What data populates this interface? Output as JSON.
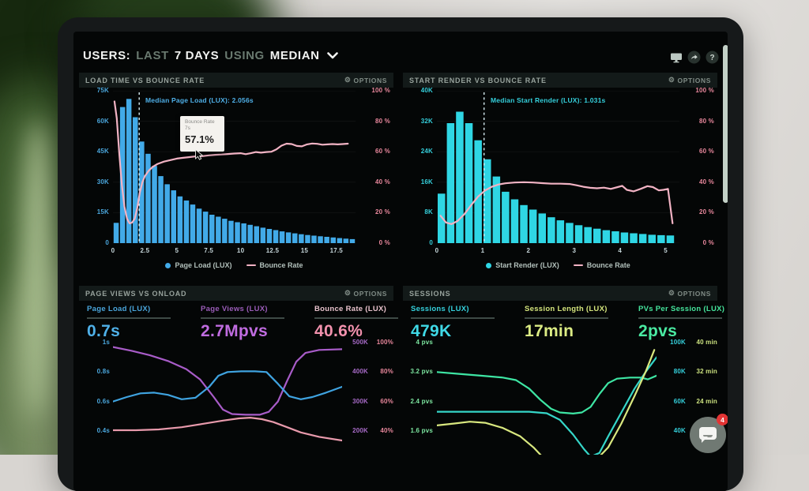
{
  "labels": {
    "options": "OPTIONS"
  },
  "header": {
    "title_prefix": "USERS:",
    "range_muted": "LAST",
    "range": "7 DAYS",
    "using_muted": "USING",
    "aggregation": "MEDIAN",
    "icons": [
      "display-icon",
      "share-icon",
      "help-icon"
    ]
  },
  "chat": {
    "unread_count": "4"
  },
  "theme": {
    "blue": "#42aae8",
    "cyan": "#2fd6e4",
    "pink_line": "#f2b3c4",
    "pink_text": "#e8879c",
    "purple": "#a86bc8",
    "green": "#45e49c",
    "teal": "#35d6c8",
    "yellow_green": "#d9e87f",
    "panel_title": "#97a29c",
    "background": "#040606"
  },
  "chart_data": [
    {
      "id": "load-time-vs-bounce-rate",
      "type": "bar",
      "title": "LOAD TIME VS BOUNCE RATE",
      "xlim": 19,
      "x_ticks": [
        0,
        2.5,
        5,
        7.5,
        10,
        12.5,
        15,
        17.5
      ],
      "left_axis": {
        "ticks": [
          "75K",
          "60K",
          "45K",
          "30K",
          "15K",
          "0"
        ],
        "max_k": 75,
        "color": "#4aa6dc"
      },
      "right_axis": {
        "ticks": [
          "100 %",
          "80 %",
          "60 %",
          "40 %",
          "20 %",
          "0 %"
        ],
        "max": 100,
        "color": "#e8879c"
      },
      "bars": {
        "name": "Page Load (LUX)",
        "color": "#42aae8",
        "start": 0.25,
        "step": 0.5,
        "values_k": [
          10,
          67,
          71,
          62,
          50,
          44,
          38,
          33,
          29,
          26,
          23,
          21,
          19,
          17,
          15.5,
          14,
          13,
          12,
          11,
          10.3,
          9.7,
          9,
          8.3,
          7.6,
          7,
          6.4,
          5.8,
          5.3,
          4.8,
          4.4,
          4,
          3.7,
          3.4,
          3.1,
          2.8,
          2.5,
          2.2,
          2
        ]
      },
      "line": {
        "name": "Bounce Rate",
        "color": "#f2b3c4",
        "points": [
          [
            0.12,
            93
          ],
          [
            0.3,
            82
          ],
          [
            0.5,
            58
          ],
          [
            0.7,
            38
          ],
          [
            0.9,
            24
          ],
          [
            1.1,
            16
          ],
          [
            1.3,
            13
          ],
          [
            1.5,
            13.5
          ],
          [
            1.7,
            16
          ],
          [
            1.9,
            23
          ],
          [
            2.1,
            33
          ],
          [
            2.3,
            40
          ],
          [
            2.5,
            44
          ],
          [
            2.8,
            47.5
          ],
          [
            3.1,
            50
          ],
          [
            3.5,
            52
          ],
          [
            4,
            53.5
          ],
          [
            4.5,
            54.5
          ],
          [
            5,
            55.5
          ],
          [
            5.5,
            56
          ],
          [
            6,
            56.5
          ],
          [
            6.5,
            57
          ],
          [
            7,
            57.1
          ],
          [
            7.5,
            57.6
          ],
          [
            8,
            58
          ],
          [
            8.5,
            58.2
          ],
          [
            9,
            58.5
          ],
          [
            9.5,
            58.8
          ],
          [
            10,
            59
          ],
          [
            10.4,
            58.4
          ],
          [
            10.8,
            59
          ],
          [
            11.2,
            59.8
          ],
          [
            11.6,
            59.4
          ],
          [
            12,
            59.8
          ],
          [
            12.4,
            60
          ],
          [
            12.8,
            61.5
          ],
          [
            13.2,
            64
          ],
          [
            13.6,
            65.3
          ],
          [
            14,
            65
          ],
          [
            14.4,
            63.8
          ],
          [
            14.8,
            63.5
          ],
          [
            15.2,
            64.8
          ],
          [
            15.6,
            65.4
          ],
          [
            16,
            65.2
          ],
          [
            16.4,
            64.6
          ],
          [
            16.8,
            64.8
          ],
          [
            17.2,
            65
          ],
          [
            17.6,
            64.8
          ],
          [
            18,
            65
          ],
          [
            18.4,
            65.3
          ]
        ]
      },
      "median": {
        "x": 2.056,
        "label": "Median Page Load (LUX): 2.056s",
        "color": "#4fb0e8"
      },
      "tooltip": {
        "series": "Bounce Rate",
        "x": "7s",
        "value": "57.1%"
      },
      "legend": [
        {
          "label": "Page Load (LUX)",
          "color": "#42aae8",
          "marker": "dot"
        },
        {
          "label": "Bounce Rate",
          "color": "#f2b3c4",
          "marker": "line"
        }
      ]
    },
    {
      "id": "start-render-vs-bounce-rate",
      "type": "bar",
      "title": "START RENDER VS BOUNCE RATE",
      "xlim": 5.3,
      "x_ticks": [
        0,
        1,
        2,
        3,
        4,
        5
      ],
      "left_axis": {
        "ticks": [
          "40K",
          "32K",
          "24K",
          "16K",
          "8K",
          "0"
        ],
        "max_k": 40,
        "color": "#35d0dc"
      },
      "right_axis": {
        "ticks": [
          "100 %",
          "80 %",
          "60 %",
          "40 %",
          "20 %",
          "0 %"
        ],
        "max": 100,
        "color": "#e8879c"
      },
      "bars": {
        "name": "Start Render (LUX)",
        "color": "#2fd6e4",
        "start": 0.1,
        "step": 0.2,
        "values_k": [
          13,
          31.5,
          34.5,
          31.5,
          27,
          22,
          17.5,
          13.5,
          11.5,
          10,
          8.8,
          7.8,
          6.8,
          6,
          5.3,
          4.7,
          4.2,
          3.8,
          3.4,
          3.1,
          2.8,
          2.6,
          2.4,
          2.2,
          2.1,
          2
        ]
      },
      "line": {
        "name": "Bounce Rate",
        "color": "#f2b3c4",
        "points": [
          [
            0.08,
            18
          ],
          [
            0.2,
            13.5
          ],
          [
            0.32,
            12.5
          ],
          [
            0.45,
            14.5
          ],
          [
            0.6,
            19
          ],
          [
            0.75,
            25
          ],
          [
            0.9,
            30.5
          ],
          [
            1.05,
            34.5
          ],
          [
            1.2,
            37
          ],
          [
            1.35,
            38.5
          ],
          [
            1.5,
            39.3
          ],
          [
            1.7,
            39.8
          ],
          [
            1.9,
            40
          ],
          [
            2.1,
            39.8
          ],
          [
            2.3,
            39.4
          ],
          [
            2.5,
            39
          ],
          [
            2.7,
            39
          ],
          [
            2.9,
            38.8
          ],
          [
            3.05,
            38
          ],
          [
            3.2,
            37
          ],
          [
            3.35,
            36.3
          ],
          [
            3.5,
            36
          ],
          [
            3.65,
            36.4
          ],
          [
            3.8,
            35.6
          ],
          [
            3.95,
            36.8
          ],
          [
            4.05,
            37.6
          ],
          [
            4.15,
            35
          ],
          [
            4.3,
            34
          ],
          [
            4.45,
            35.6
          ],
          [
            4.6,
            37.4
          ],
          [
            4.72,
            36.8
          ],
          [
            4.85,
            34.6
          ],
          [
            4.95,
            35
          ],
          [
            5.05,
            35.6
          ],
          [
            5.15,
            13
          ]
        ]
      },
      "median": {
        "x": 1.031,
        "label": "Median Start Render (LUX): 1.031s",
        "color": "#35d0dc"
      },
      "legend": [
        {
          "label": "Start Render (LUX)",
          "color": "#2fd6e4",
          "marker": "dot"
        },
        {
          "label": "Bounce Rate",
          "color": "#f2b3c4",
          "marker": "line"
        }
      ]
    },
    {
      "id": "page-views-vs-onload",
      "type": "line",
      "title": "PAGE VIEWS VS ONLOAD",
      "metrics": [
        {
          "label": "Page Load (LUX)",
          "value": "0.7s",
          "label_color": "#4aa6dc",
          "value_color": "#4fb0e8"
        },
        {
          "label": "Page Views (LUX)",
          "value": "2.7Mpvs",
          "label_color": "#9a5cb8",
          "value_color": "#c06ce0"
        },
        {
          "label": "Bounce Rate (LUX)",
          "value": "40.6%",
          "label_color": "#e8c2cc",
          "value_color": "#f291ad"
        }
      ],
      "left_axis": {
        "ticks": [
          "1s",
          "0.8s",
          "0.6s",
          "0.4s"
        ],
        "color": "#4aa6dc"
      },
      "right_axis_k": {
        "ticks": [
          "500K",
          "400K",
          "300K",
          "200K"
        ],
        "color": "#a86bc8"
      },
      "right_axis_pct": {
        "ticks": [
          "100%",
          "80%",
          "60%",
          "40%"
        ],
        "color": "#e8879c"
      },
      "series": [
        {
          "name": "Page Views (LUX)",
          "color": "#a85cc8",
          "points": [
            [
              0,
              0.97
            ],
            [
              0.08,
              0.945
            ],
            [
              0.16,
              0.915
            ],
            [
              0.24,
              0.875
            ],
            [
              0.32,
              0.82
            ],
            [
              0.38,
              0.75
            ],
            [
              0.44,
              0.63
            ],
            [
              0.48,
              0.545
            ],
            [
              0.52,
              0.515
            ],
            [
              0.58,
              0.51
            ],
            [
              0.64,
              0.51
            ],
            [
              0.68,
              0.53
            ],
            [
              0.72,
              0.6
            ],
            [
              0.76,
              0.74
            ],
            [
              0.8,
              0.87
            ],
            [
              0.84,
              0.93
            ],
            [
              0.9,
              0.95
            ],
            [
              1,
              0.955
            ]
          ]
        },
        {
          "name": "Page Load (LUX)",
          "color": "#3fa3e0",
          "points": [
            [
              0,
              0.6
            ],
            [
              0.06,
              0.63
            ],
            [
              0.12,
              0.655
            ],
            [
              0.18,
              0.66
            ],
            [
              0.24,
              0.645
            ],
            [
              0.3,
              0.615
            ],
            [
              0.36,
              0.625
            ],
            [
              0.42,
              0.7
            ],
            [
              0.46,
              0.775
            ],
            [
              0.5,
              0.8
            ],
            [
              0.56,
              0.805
            ],
            [
              0.62,
              0.805
            ],
            [
              0.67,
              0.8
            ],
            [
              0.72,
              0.72
            ],
            [
              0.77,
              0.635
            ],
            [
              0.82,
              0.615
            ],
            [
              0.87,
              0.63
            ],
            [
              0.93,
              0.66
            ],
            [
              1,
              0.7
            ]
          ]
        },
        {
          "name": "Bounce Rate (LUX)",
          "color": "#e89aac",
          "points": [
            [
              0,
              0.405
            ],
            [
              0.1,
              0.405
            ],
            [
              0.2,
              0.41
            ],
            [
              0.3,
              0.425
            ],
            [
              0.4,
              0.45
            ],
            [
              0.48,
              0.47
            ],
            [
              0.55,
              0.485
            ],
            [
              0.6,
              0.49
            ],
            [
              0.65,
              0.48
            ],
            [
              0.7,
              0.46
            ],
            [
              0.76,
              0.425
            ],
            [
              0.82,
              0.39
            ],
            [
              0.9,
              0.36
            ],
            [
              1,
              0.335
            ]
          ]
        }
      ]
    },
    {
      "id": "sessions",
      "type": "line",
      "title": "SESSIONS",
      "metrics": [
        {
          "label": "Sessions (LUX)",
          "value": "479K",
          "label_color": "#35d0dc",
          "value_color": "#3fd9e6"
        },
        {
          "label": "Session Length (LUX)",
          "value": "17min",
          "label_color": "#d4e47c",
          "value_color": "#dcec84"
        },
        {
          "label": "PVs Per Session (LUX)",
          "value": "2pvs",
          "label_color": "#45e49c",
          "value_color": "#4aeaa2"
        }
      ],
      "left_axis": {
        "ticks": [
          "4 pvs",
          "3.2 pvs",
          "2.4 pvs",
          "1.6 pvs"
        ],
        "color": "#7de6a0"
      },
      "right_axis_k": {
        "ticks": [
          "100K",
          "80K",
          "60K",
          "40K"
        ],
        "color": "#35d0dc"
      },
      "right_axis_min": {
        "ticks": [
          "40 min",
          "32 min",
          "24 min",
          ""
        ],
        "color": "#cde380"
      },
      "series": [
        {
          "name": "PVs Per Session (LUX)",
          "color": "#3ee6a4",
          "points": [
            [
              0,
              3.2
            ],
            [
              0.1,
              3.15
            ],
            [
              0.2,
              3.1
            ],
            [
              0.3,
              3.05
            ],
            [
              0.36,
              2.98
            ],
            [
              0.42,
              2.75
            ],
            [
              0.47,
              2.45
            ],
            [
              0.52,
              2.2
            ],
            [
              0.56,
              2.1
            ],
            [
              0.62,
              2.07
            ],
            [
              0.66,
              2.1
            ],
            [
              0.7,
              2.25
            ],
            [
              0.74,
              2.6
            ],
            [
              0.78,
              2.9
            ],
            [
              0.82,
              3.02
            ],
            [
              0.88,
              3.05
            ],
            [
              0.93,
              3.05
            ],
            [
              0.96,
              3.0
            ],
            [
              1,
              3.1
            ]
          ]
        },
        {
          "name": "Sessions (LUX)",
          "color": "#35d6c8",
          "points": [
            [
              0,
              2.12
            ],
            [
              0.15,
              2.12
            ],
            [
              0.3,
              2.12
            ],
            [
              0.42,
              2.12
            ],
            [
              0.5,
              2.08
            ],
            [
              0.56,
              1.9
            ],
            [
              0.62,
              1.5
            ],
            [
              0.67,
              1.1
            ],
            [
              0.7,
              0.9
            ],
            [
              0.74,
              1.0
            ],
            [
              0.78,
              1.45
            ],
            [
              0.84,
              2.1
            ],
            [
              0.9,
              2.75
            ],
            [
              0.95,
              3.2
            ],
            [
              1,
              3.6
            ]
          ]
        },
        {
          "name": "Session Length (LUX)",
          "color": "#d9e87f",
          "points": [
            [
              0,
              1.75
            ],
            [
              0.08,
              1.8
            ],
            [
              0.15,
              1.85
            ],
            [
              0.22,
              1.82
            ],
            [
              0.3,
              1.68
            ],
            [
              0.38,
              1.45
            ],
            [
              0.44,
              1.15
            ],
            [
              0.48,
              0.9
            ],
            [
              0.55,
              0.75
            ],
            [
              0.65,
              0.72
            ],
            [
              0.72,
              0.78
            ],
            [
              0.78,
              1.15
            ],
            [
              0.84,
              1.8
            ],
            [
              0.9,
              2.55
            ],
            [
              0.95,
              3.2
            ],
            [
              0.99,
              3.8
            ]
          ]
        }
      ]
    }
  ]
}
